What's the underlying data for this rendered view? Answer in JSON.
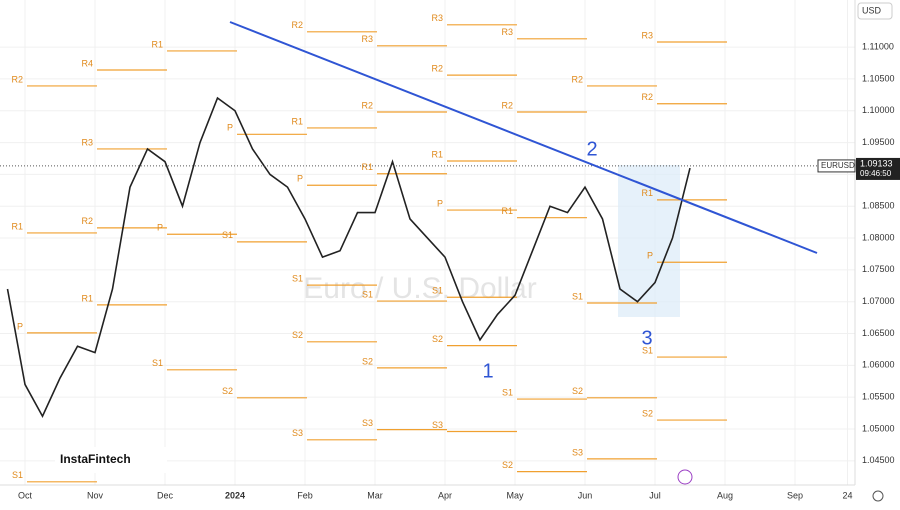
{
  "chart_data": {
    "type": "line",
    "symbol": "EURUSD",
    "watermark": "Euro / U.S. Dollar",
    "currency": "USD",
    "brand": "InstaFintech",
    "last": {
      "value": 1.09133,
      "label": "1.09133"
    },
    "time": "09:46:50",
    "categories": [
      null,
      "Oct",
      null,
      null,
      null,
      "Nov",
      null,
      null,
      null,
      "Dec",
      null,
      null,
      null,
      "2024",
      null,
      null,
      null,
      "Feb",
      null,
      null,
      null,
      "Mar",
      null,
      null,
      null,
      "Apr",
      null,
      null,
      null,
      "May",
      null,
      null,
      null,
      "Jun",
      null,
      null,
      null,
      "Jul",
      null,
      null,
      null,
      "Aug",
      null,
      null,
      null,
      "Sep",
      null,
      null,
      "24"
    ],
    "series": [
      {
        "name": "EURUSD",
        "color": "#222222",
        "values": [
          1.072,
          1.057,
          1.052,
          1.058,
          1.063,
          1.062,
          1.072,
          1.088,
          1.094,
          1.092,
          1.085,
          1.095,
          1.102,
          1.1,
          1.094,
          1.09,
          1.088,
          1.083,
          1.077,
          1.078,
          1.084,
          1.084,
          1.092,
          1.083,
          1.08,
          1.077,
          1.07,
          1.064,
          1.068,
          1.071,
          1.078,
          1.085,
          1.084,
          1.088,
          1.083,
          1.072,
          1.07,
          1.073,
          1.08,
          1.091,
          null,
          null,
          null,
          null,
          null,
          null,
          null,
          null,
          null
        ]
      }
    ],
    "ylim": [
      1.0412,
      1.1174
    ],
    "yticks": [
      {
        "value": 1.045,
        "label": "1.04500"
      },
      {
        "value": 1.05,
        "label": "1.05000"
      },
      {
        "value": 1.055,
        "label": "1.05500"
      },
      {
        "value": 1.06,
        "label": "1.06000"
      },
      {
        "value": 1.065,
        "label": "1.06500"
      },
      {
        "value": 1.07,
        "label": "1.07000"
      },
      {
        "value": 1.075,
        "label": "1.07500"
      },
      {
        "value": 1.08,
        "label": "1.08000"
      },
      {
        "value": 1.085,
        "label": "1.08500"
      },
      {
        "value": 1.09,
        "label": "1.09000"
      },
      {
        "value": 1.095,
        "label": "1.09500"
      },
      {
        "value": 1.1,
        "label": "1.10000"
      },
      {
        "value": 1.105,
        "label": "1.10500"
      },
      {
        "value": 1.11,
        "label": "1.11000"
      }
    ],
    "grid": true,
    "pivot_color": "#f0a030",
    "pivots": [
      [
        {
          "label": "R2",
          "value": 1.1039
        },
        {
          "label": "R1",
          "value": 1.0808
        },
        {
          "label": "P",
          "value": 1.0651
        },
        {
          "label": "S1",
          "value": 1.0417
        }
      ],
      [
        {
          "label": "R4",
          "value": 1.1064
        },
        {
          "label": "R3",
          "value": 1.094
        },
        {
          "label": "R2",
          "value": 1.0816
        },
        {
          "label": "R1",
          "value": 1.0695
        }
      ],
      [
        {
          "label": "R1",
          "value": 1.1094
        },
        {
          "label": "P",
          "value": 1.0806
        },
        {
          "label": "S1",
          "value": 1.0593
        }
      ],
      [
        {
          "label": "P",
          "value": 1.0963
        },
        {
          "label": "S1",
          "value": 1.0794
        },
        {
          "label": "S2",
          "value": 1.0549
        }
      ],
      [
        {
          "label": "R2",
          "value": 1.1124
        },
        {
          "label": "R1",
          "value": 1.0973
        },
        {
          "label": "P",
          "value": 1.0883
        },
        {
          "label": "S1",
          "value": 1.0726
        },
        {
          "label": "S2",
          "value": 1.0637
        },
        {
          "label": "S3",
          "value": 1.0483
        }
      ],
      [
        {
          "label": "R3",
          "value": 1.1102
        },
        {
          "label": "R2",
          "value": 1.0998
        },
        {
          "label": "R1",
          "value": 1.0901
        },
        {
          "label": "S1",
          "value": 1.0701
        },
        {
          "label": "S2",
          "value": 1.0596
        },
        {
          "label": "S3",
          "value": 1.0499
        }
      ],
      [
        {
          "label": "R3",
          "value": 1.1135
        },
        {
          "label": "R2",
          "value": 1.1056
        },
        {
          "label": "R1",
          "value": 1.0921
        },
        {
          "label": "P",
          "value": 1.0844
        },
        {
          "label": "S1",
          "value": 1.0707
        },
        {
          "label": "S2",
          "value": 1.0631
        },
        {
          "label": "S3",
          "value": 1.0496
        }
      ],
      [
        {
          "label": "R3",
          "value": 1.1113
        },
        {
          "label": "R2",
          "value": 1.0998
        },
        {
          "label": "R1",
          "value": 1.0832
        },
        {
          "label": "S1",
          "value": 1.0547
        },
        {
          "label": "S2",
          "value": 1.0433
        }
      ],
      [
        {
          "label": "R2",
          "value": 1.1039
        },
        {
          "label": "S1",
          "value": 1.0698
        },
        {
          "label": "S2",
          "value": 1.0549
        },
        {
          "label": "S3",
          "value": 1.0453
        }
      ],
      [
        {
          "label": "R3",
          "value": 1.1108
        },
        {
          "label": "R2",
          "value": 1.1011
        },
        {
          "label": "R1",
          "value": 1.086
        },
        {
          "label": "P",
          "value": 1.0762
        },
        {
          "label": "S1",
          "value": 1.0613
        },
        {
          "label": "S2",
          "value": 1.0514
        }
      ]
    ],
    "wave_labels": [
      "1",
      "2",
      "3"
    ]
  }
}
